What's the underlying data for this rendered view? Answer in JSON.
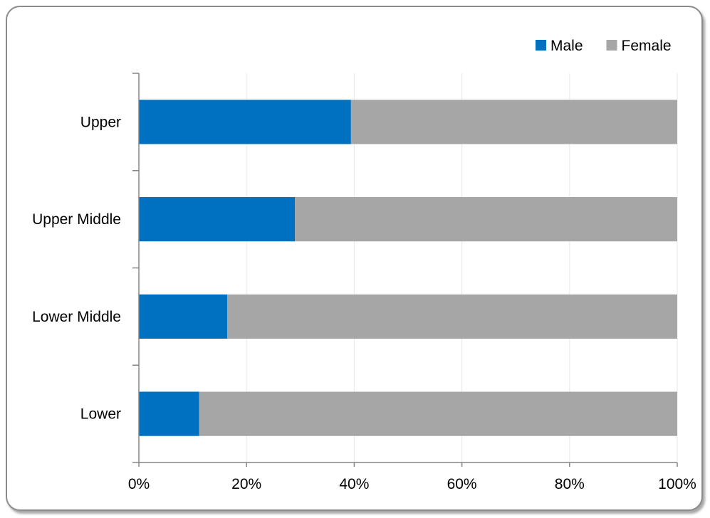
{
  "chart_data": {
    "type": "bar",
    "orientation": "horizontal",
    "stacked": "percent",
    "title": "",
    "xlabel": "",
    "ylabel": "",
    "categories": [
      "Upper",
      "Upper Middle",
      "Lower Middle",
      "Lower"
    ],
    "series": [
      {
        "name": "Male",
        "color": "#0070c0",
        "values": [
          39.4,
          29.0,
          16.4,
          11.2
        ]
      },
      {
        "name": "Female",
        "color": "#a6a6a6",
        "values": [
          60.6,
          71.0,
          83.6,
          88.8
        ]
      }
    ],
    "xlim": [
      0,
      100
    ],
    "x_ticks": [
      "0%",
      "20%",
      "40%",
      "60%",
      "80%",
      "100%"
    ],
    "grid": "vertical",
    "legend_position": "top-right"
  }
}
